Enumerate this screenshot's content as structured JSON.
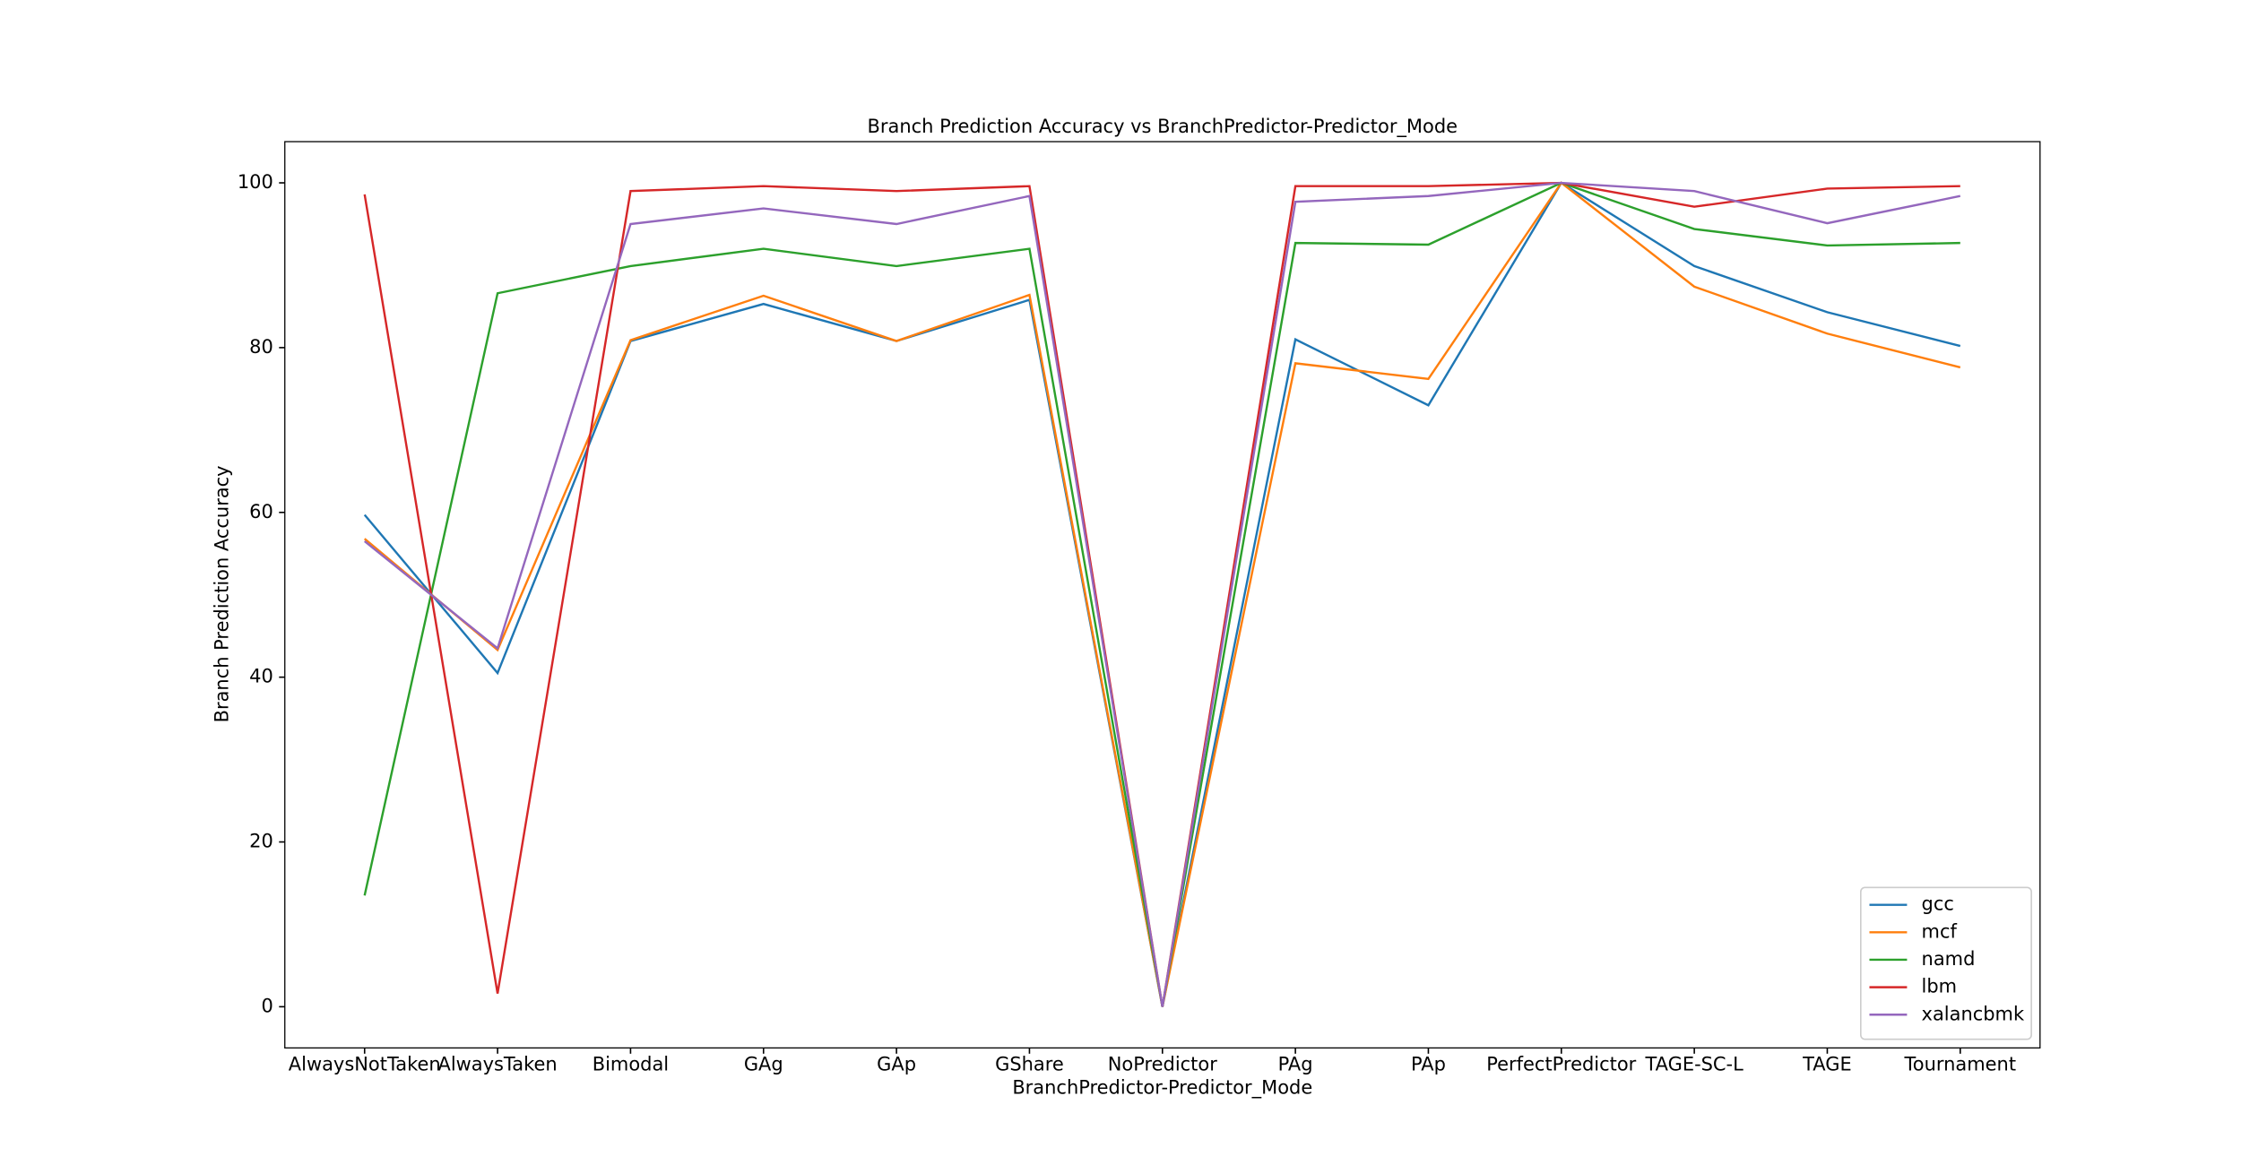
{
  "chart_data": {
    "type": "line",
    "title": "Branch Prediction Accuracy vs BranchPredictor-Predictor_Mode",
    "x_label": "BranchPredictor-Predictor_Mode",
    "y_label": "Branch Prediction Accuracy",
    "categories": [
      "AlwaysNotTaken",
      "AlwaysTaken",
      "Bimodal",
      "GAg",
      "GAp",
      "GShare",
      "NoPredictor",
      "PAg",
      "PAp",
      "PerfectPredictor",
      "TAGE-SC-L",
      "TAGE",
      "Tournament"
    ],
    "series": [
      {
        "name": "gcc",
        "color": "#1f77b4",
        "values": [
          59.7,
          40.5,
          80.8,
          85.3,
          80.8,
          85.8,
          0,
          81,
          73,
          100,
          89.9,
          84.3,
          80.2
        ]
      },
      {
        "name": "mcf",
        "color": "#ff7f0e",
        "values": [
          56.8,
          43.3,
          80.9,
          86.3,
          80.8,
          86.4,
          0,
          78.1,
          76.2,
          100,
          87.4,
          81.7,
          77.6
        ]
      },
      {
        "name": "namd",
        "color": "#2ca02c",
        "values": [
          13.5,
          86.6,
          89.9,
          92,
          89.9,
          92,
          0,
          92.7,
          92.5,
          100,
          94.4,
          92.4,
          92.7
        ]
      },
      {
        "name": "lbm",
        "color": "#d62728",
        "values": [
          98.6,
          1.6,
          99,
          99.6,
          99,
          99.6,
          0,
          99.6,
          99.6,
          100,
          97.1,
          99.3,
          99.6
        ]
      },
      {
        "name": "xalancbmk",
        "color": "#9467bd",
        "values": [
          56.5,
          43.5,
          95,
          96.9,
          95,
          98.4,
          0,
          97.7,
          98.4,
          100,
          99,
          95.1,
          98.4
        ]
      }
    ],
    "ylim": [
      -5,
      105
    ],
    "yticks": [
      0,
      20,
      40,
      60,
      80,
      100
    ],
    "grid": false,
    "legend": "lower right"
  }
}
